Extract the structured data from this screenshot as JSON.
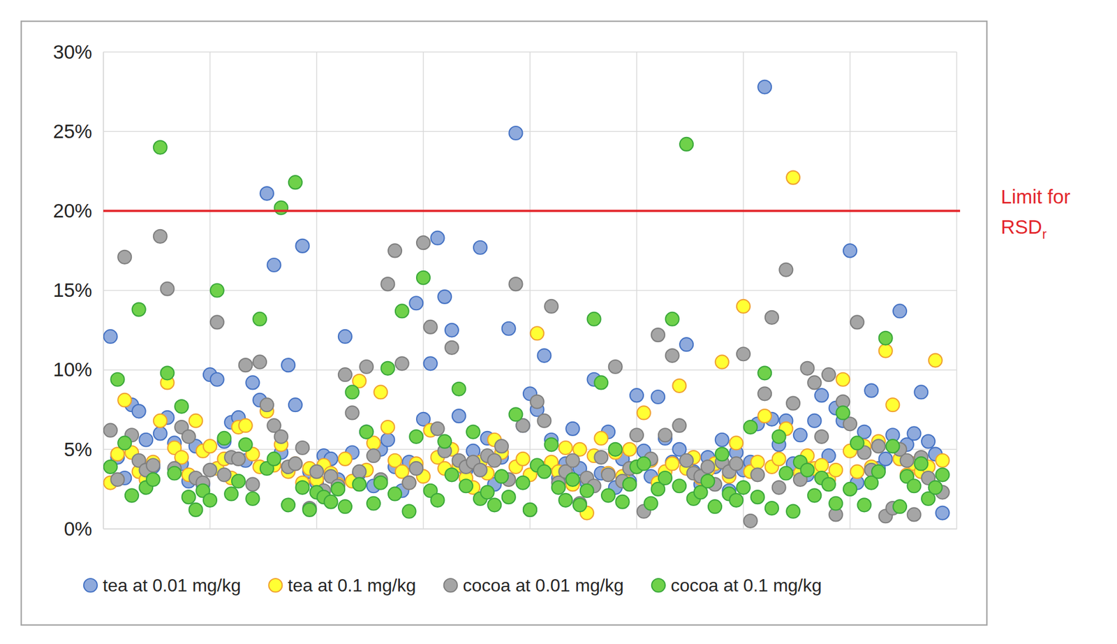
{
  "chart_data": {
    "type": "scatter",
    "x": [
      1,
      2,
      3,
      4,
      5,
      6,
      7,
      8,
      9,
      10,
      11,
      12,
      13,
      14,
      15,
      16,
      17,
      18,
      19,
      20,
      21,
      22,
      23,
      24,
      25,
      26,
      27,
      28,
      29,
      30,
      31,
      32,
      33,
      34,
      35,
      36,
      37,
      38,
      39,
      40,
      41,
      42,
      43,
      44,
      45,
      46,
      47,
      48,
      49,
      50,
      51,
      52,
      53,
      54,
      55,
      56,
      57,
      58,
      59,
      60,
      61,
      62,
      63,
      64,
      65,
      66,
      67,
      68,
      69,
      70,
      71,
      72,
      73,
      74,
      75,
      76,
      77,
      78,
      79,
      80,
      81,
      82,
      83,
      84,
      85,
      86,
      87,
      88,
      89,
      90,
      91,
      92,
      93,
      94,
      95,
      96,
      97,
      98,
      99,
      100,
      101,
      102,
      103,
      104,
      105,
      106,
      107,
      108,
      109,
      110,
      111,
      112,
      113,
      114,
      115,
      116,
      117,
      118
    ],
    "xlim": [
      0,
      120
    ],
    "xticks": [
      0,
      15,
      30,
      45,
      60,
      75,
      90,
      105,
      120
    ],
    "ylim": [
      0,
      30
    ],
    "yticks": [
      {
        "value": 0,
        "label": "0%"
      },
      {
        "value": 5,
        "label": "5%"
      },
      {
        "value": 10,
        "label": "10%"
      },
      {
        "value": 15,
        "label": "15%"
      },
      {
        "value": 20,
        "label": "20%"
      },
      {
        "value": 25,
        "label": "25%"
      },
      {
        "value": 30,
        "label": "30%"
      }
    ],
    "tick_labels": "y",
    "grid": true,
    "legend": "bottom",
    "marker": "circle",
    "annotations": [
      {
        "text": "Limit for RSD",
        "subscript": "r",
        "y": 20
      }
    ],
    "series": [
      {
        "name": "tea at 0.01 mg/kg",
        "color": "#8faadc",
        "values": [
          12.1,
          4.5,
          3.2,
          7.8,
          7.4,
          5.6,
          3.9,
          6.0,
          7.0,
          5.4,
          4.1,
          3.0,
          5.2,
          2.8,
          9.7,
          9.4,
          5.5,
          6.7,
          7.0,
          4.3,
          9.2,
          8.1,
          21.1,
          16.6,
          4.8,
          10.3,
          7.8,
          17.8,
          3.6,
          2.9,
          4.6,
          4.4,
          3.1,
          12.1,
          4.8,
          3.5,
          6.1,
          2.7,
          5.0,
          5.6,
          3.9,
          2.4,
          4.2,
          14.2,
          6.9,
          10.4,
          18.3,
          14.6,
          12.5,
          7.1,
          3.7,
          4.9,
          17.7,
          5.7,
          2.8,
          4.5,
          12.6,
          24.9,
          6.5,
          8.5,
          7.5,
          10.9,
          5.6,
          3.2,
          4.1,
          6.3,
          3.8,
          2.9,
          9.4,
          3.5,
          6.1,
          2.6,
          4.4,
          3.0,
          8.4,
          4.9,
          3.3,
          8.3,
          5.7,
          4.2,
          5.0,
          11.6,
          3.6,
          2.8,
          4.5,
          3.9,
          5.6,
          2.4,
          4.8,
          3.7,
          4.2,
          6.6,
          27.8,
          6.9,
          5.3,
          6.8,
          4.1,
          5.9,
          3.4,
          6.8,
          8.4,
          4.6,
          7.6,
          6.8,
          17.5,
          2.9,
          6.1,
          8.7,
          3.8,
          4.4,
          5.9,
          13.7,
          5.3,
          6.0,
          8.6,
          5.5,
          4.7,
          1.0
        ]
      },
      {
        "name": "tea at 0.1 mg/kg",
        "color": "#ffff33",
        "values": [
          2.9,
          4.7,
          8.1,
          4.8,
          3.6,
          3.1,
          4.2,
          6.8,
          9.2,
          5.1,
          4.5,
          3.4,
          6.8,
          4.9,
          5.2,
          3.8,
          4.4,
          3.2,
          6.4,
          6.5,
          4.7,
          3.9,
          7.4,
          4.0,
          5.3,
          3.6,
          4.1,
          2.9,
          3.8,
          3.1,
          4.0,
          3.5,
          2.8,
          4.4,
          3.0,
          9.3,
          3.7,
          5.4,
          8.6,
          6.4,
          4.3,
          3.6,
          2.9,
          4.1,
          3.3,
          6.2,
          4.5,
          3.8,
          5.0,
          4.0,
          3.2,
          2.6,
          4.2,
          3.5,
          5.6,
          4.8,
          3.1,
          3.9,
          4.4,
          3.4,
          12.3,
          3.8,
          4.2,
          3.6,
          5.1,
          2.8,
          5.0,
          1.0,
          4.6,
          5.7,
          3.5,
          4.8,
          3.3,
          5.0,
          3.9,
          7.3,
          4.3,
          2.9,
          3.6,
          4.1,
          9.0,
          3.8,
          4.5,
          3.2,
          3.7,
          4.1,
          10.5,
          3.3,
          5.4,
          14.0,
          3.6,
          4.2,
          7.1,
          3.9,
          4.4,
          6.3,
          22.1,
          3.5,
          4.6,
          3.8,
          4.0,
          3.1,
          3.7,
          9.4,
          4.9,
          3.6,
          5.2,
          3.9,
          5.5,
          11.2,
          7.8,
          4.4,
          3.4,
          4.1,
          3.6,
          3.9,
          10.6,
          4.3
        ]
      },
      {
        "name": "cocoa at 0.01 mg/kg",
        "color": "#a5a5a5",
        "values": [
          6.2,
          3.1,
          17.1,
          5.9,
          4.3,
          3.7,
          4.0,
          18.4,
          15.1,
          3.8,
          6.4,
          5.8,
          3.2,
          2.9,
          3.7,
          13.0,
          3.4,
          4.5,
          4.4,
          10.3,
          2.8,
          10.5,
          7.8,
          6.5,
          5.8,
          3.9,
          4.1,
          5.1,
          1.3,
          3.6,
          2.4,
          3.3,
          2.7,
          9.7,
          7.3,
          3.6,
          10.2,
          4.6,
          3.1,
          15.4,
          17.5,
          10.4,
          2.9,
          3.8,
          18.0,
          12.7,
          6.3,
          4.9,
          11.4,
          4.3,
          3.9,
          4.2,
          3.7,
          4.6,
          4.3,
          5.2,
          3.1,
          15.4,
          6.5,
          1.2,
          8.0,
          6.8,
          14.0,
          2.9,
          3.6,
          4.3,
          1.6,
          3.2,
          2.7,
          4.5,
          3.4,
          10.2,
          3.0,
          3.8,
          5.9,
          1.1,
          4.4,
          12.2,
          5.9,
          10.9,
          6.5,
          4.3,
          3.5,
          3.3,
          3.9,
          2.8,
          4.2,
          3.6,
          4.1,
          11.0,
          0.5,
          3.4,
          8.5,
          13.3,
          2.6,
          16.3,
          7.9,
          3.1,
          10.1,
          9.2,
          5.8,
          9.7,
          0.9,
          8.0,
          6.6,
          13.0,
          4.8,
          3.7,
          5.2,
          0.8,
          1.3,
          5.0,
          4.3,
          0.9,
          4.5,
          3.2,
          2.6,
          2.3
        ]
      },
      {
        "name": "cocoa at 0.1 mg/kg",
        "color": "#6fd14a",
        "values": [
          3.9,
          9.4,
          5.4,
          2.1,
          13.8,
          2.6,
          3.1,
          24.0,
          9.8,
          3.5,
          7.7,
          2.0,
          1.2,
          2.4,
          1.8,
          15.0,
          5.7,
          2.2,
          3.0,
          5.3,
          1.9,
          13.2,
          3.8,
          4.4,
          20.2,
          1.5,
          21.8,
          2.6,
          1.2,
          2.3,
          2.0,
          1.7,
          2.5,
          1.4,
          8.6,
          2.8,
          6.1,
          1.6,
          2.9,
          10.1,
          2.2,
          13.7,
          1.1,
          5.8,
          15.8,
          2.4,
          1.8,
          5.5,
          3.4,
          8.8,
          2.7,
          6.1,
          1.9,
          2.3,
          1.5,
          3.3,
          2.0,
          7.2,
          2.9,
          1.2,
          4.0,
          3.6,
          5.3,
          2.6,
          1.8,
          3.1,
          1.5,
          2.4,
          13.2,
          9.2,
          2.1,
          5.0,
          1.7,
          2.8,
          3.9,
          4.1,
          1.6,
          2.5,
          3.2,
          13.2,
          2.7,
          24.2,
          1.9,
          2.3,
          3.0,
          1.4,
          4.7,
          2.2,
          1.8,
          2.6,
          6.4,
          2.0,
          9.8,
          1.3,
          5.8,
          3.5,
          1.1,
          4.2,
          3.7,
          2.1,
          3.2,
          2.8,
          1.6,
          7.3,
          2.5,
          5.4,
          1.5,
          2.9,
          3.6,
          12.0,
          5.2,
          1.4,
          3.3,
          2.7,
          4.1,
          1.9,
          2.6,
          3.4
        ]
      }
    ]
  }
}
